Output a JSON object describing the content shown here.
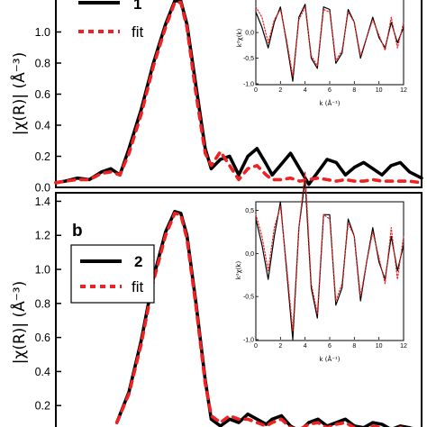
{
  "chart_data": [
    {
      "type": "line",
      "panel_label": "",
      "ylabel": "|χ(R)| (Å⁻³)",
      "ylim": [
        0,
        1.2
      ],
      "yticks": [
        "0.0",
        "0.2",
        "0.4",
        "0.6",
        "0.8",
        "1.0"
      ],
      "xlim": [
        0,
        6
      ],
      "legend": [
        "1",
        "fit"
      ],
      "legend_placement": "top-left",
      "series": [
        {
          "name": "1",
          "color": "#000000",
          "style": "solid",
          "x": [
            0,
            0.15,
            0.35,
            0.55,
            0.75,
            0.9,
            1.05,
            1.2,
            1.4,
            1.6,
            1.8,
            1.95,
            2.05,
            2.15,
            2.3,
            2.45,
            2.55,
            2.7,
            2.85,
            3.0,
            3.15,
            3.3,
            3.45,
            3.55,
            3.7,
            3.85,
            4.0,
            4.15,
            4.3,
            4.45,
            4.6,
            4.75,
            4.9,
            5.05,
            5.2,
            5.35,
            5.5,
            5.65,
            5.8,
            6.0
          ],
          "y": [
            0.03,
            0.04,
            0.06,
            0.05,
            0.1,
            0.12,
            0.08,
            0.25,
            0.5,
            0.8,
            1.05,
            1.2,
            1.2,
            1.05,
            0.65,
            0.25,
            0.12,
            0.18,
            0.2,
            0.08,
            0.2,
            0.25,
            0.15,
            0.08,
            0.15,
            0.22,
            0.12,
            0.02,
            0.1,
            0.18,
            0.16,
            0.08,
            0.13,
            0.16,
            0.12,
            0.08,
            0.14,
            0.16,
            0.1,
            0.06
          ]
        },
        {
          "name": "fit",
          "color": "#ee2222",
          "style": "dashed",
          "x": [
            0,
            0.15,
            0.35,
            0.55,
            0.75,
            0.9,
            1.05,
            1.2,
            1.4,
            1.6,
            1.8,
            1.95,
            2.05,
            2.15,
            2.3,
            2.45,
            2.55,
            2.7,
            2.85,
            3.0,
            3.15,
            3.3,
            3.45,
            3.55,
            3.7,
            3.85,
            4.0,
            4.15,
            4.3,
            4.45,
            4.6,
            4.75,
            4.9,
            5.05,
            5.2,
            5.35,
            5.5,
            5.65,
            5.8,
            6.0
          ],
          "y": [
            0.03,
            0.04,
            0.05,
            0.05,
            0.09,
            0.1,
            0.08,
            0.22,
            0.47,
            0.78,
            1.03,
            1.19,
            1.19,
            1.03,
            0.6,
            0.22,
            0.14,
            0.23,
            0.14,
            0.05,
            0.12,
            0.14,
            0.08,
            0.05,
            0.05,
            0.06,
            0.04,
            0.05,
            0.06,
            0.05,
            0.04,
            0.05,
            0.04,
            0.04,
            0.05,
            0.04,
            0.04,
            0.04,
            0.04,
            0.03
          ]
        }
      ],
      "inset": {
        "ylabel": "k²χ(k)",
        "xlabel": "k (Å⁻¹)",
        "xlim": [
          0,
          12
        ],
        "ylim": [
          -1.0,
          0.6
        ],
        "xticks": [
          "0",
          "2",
          "4",
          "6",
          "8",
          "10",
          "12"
        ],
        "yticks": [
          "-1,0",
          "-0,5",
          "0,0"
        ],
        "series": [
          {
            "name": "data",
            "color": "#000000",
            "style": "solid",
            "x": [
              0,
              0.5,
              1.0,
              1.5,
              2.0,
              2.5,
              3.0,
              3.5,
              4.0,
              4.5,
              5.0,
              5.5,
              6.0,
              6.5,
              7.0,
              7.5,
              8.0,
              8.5,
              9.0,
              9.5,
              10.0,
              10.5,
              11.0,
              11.5,
              12.0
            ],
            "x_unused": [],
            "y": [
              0.4,
              0.1,
              -0.3,
              0.2,
              0.5,
              -0.2,
              -0.95,
              0.3,
              0.55,
              -0.5,
              -0.7,
              0.5,
              0.45,
              -0.6,
              -0.4,
              0.45,
              0.2,
              -0.5,
              -0.1,
              0.3,
              -0.1,
              -0.3,
              0.2,
              -0.2,
              0.1
            ]
          },
          {
            "name": "fit",
            "color": "#ee2222",
            "style": "dotted",
            "x": [
              0,
              0.5,
              1.0,
              1.5,
              2.0,
              2.5,
              3.0,
              3.5,
              4.0,
              4.5,
              5.0,
              5.5,
              6.0,
              6.5,
              7.0,
              7.5,
              8.0,
              8.5,
              9.0,
              9.5,
              10.0,
              10.5,
              11.0,
              11.5,
              12.0
            ],
            "y": [
              0.5,
              0.3,
              -0.2,
              0.25,
              0.45,
              -0.15,
              -0.85,
              0.25,
              0.5,
              -0.45,
              -0.65,
              0.45,
              0.4,
              -0.55,
              -0.35,
              0.4,
              0.2,
              -0.45,
              -0.1,
              0.25,
              -0.05,
              -0.35,
              0.3,
              -0.3,
              0.2
            ]
          }
        ]
      }
    },
    {
      "type": "line",
      "panel_label": "b",
      "ylabel": "|χ(R)| (Å⁻³)",
      "ylim": [
        0,
        1.45
      ],
      "yticks": [
        "0.2",
        "0.4",
        "0.6",
        "0.8",
        "1.0",
        "1.2",
        "1.4"
      ],
      "xlim": [
        0,
        6
      ],
      "legend": [
        "2",
        "fit"
      ],
      "legend_placement": "middle-left",
      "series": [
        {
          "name": "2",
          "color": "#000000",
          "style": "solid",
          "x": [
            1.0,
            1.2,
            1.4,
            1.6,
            1.8,
            1.95,
            2.05,
            2.15,
            2.3,
            2.45,
            2.55,
            2.7,
            2.85,
            3.0,
            3.15,
            3.3,
            3.45,
            3.55,
            3.7,
            3.85,
            4.0,
            4.15,
            4.3,
            4.45,
            4.6,
            4.75,
            4.9,
            5.05,
            5.2,
            5.35,
            5.5,
            5.65,
            5.8,
            6.0
          ],
          "y": [
            0.1,
            0.28,
            0.58,
            0.95,
            1.22,
            1.34,
            1.33,
            1.2,
            0.8,
            0.35,
            0.12,
            0.08,
            0.12,
            0.1,
            0.15,
            0.12,
            0.09,
            0.12,
            0.14,
            0.08,
            0.05,
            0.1,
            0.12,
            0.08,
            0.1,
            0.12,
            0.08,
            0.07,
            0.1,
            0.09,
            0.06,
            0.08,
            0.07,
            0.05
          ]
        },
        {
          "name": "fit",
          "color": "#ee2222",
          "style": "dashed",
          "x": [
            1.0,
            1.2,
            1.4,
            1.6,
            1.8,
            1.95,
            2.05,
            2.15,
            2.3,
            2.45,
            2.55,
            2.7,
            2.85,
            3.0,
            3.15,
            3.3,
            3.45,
            3.55,
            3.7,
            3.85,
            4.0,
            4.15,
            4.3,
            4.45,
            4.6,
            4.75,
            4.9,
            5.05,
            5.2,
            5.35,
            5.5,
            5.65,
            5.8,
            6.0
          ],
          "y": [
            0.1,
            0.27,
            0.56,
            0.93,
            1.2,
            1.33,
            1.32,
            1.18,
            0.78,
            0.33,
            0.14,
            0.1,
            0.14,
            0.12,
            0.12,
            0.1,
            0.08,
            0.1,
            0.12,
            0.07,
            0.06,
            0.09,
            0.1,
            0.07,
            0.09,
            0.1,
            0.07,
            0.06,
            0.08,
            0.07,
            0.05,
            0.07,
            0.06,
            0.05
          ]
        }
      ],
      "inset": {
        "ylabel": "k²χ(k)",
        "xlabel": "k (Å⁻¹)",
        "xlim": [
          0,
          12
        ],
        "ylim": [
          -1.0,
          0.6
        ],
        "xticks": [
          "0",
          "2",
          "4",
          "6",
          "8",
          "10",
          "12"
        ],
        "yticks": [
          "-1,0",
          "-0,5",
          "0,0",
          "0,5"
        ],
        "series": [
          {
            "name": "data",
            "color": "#000000",
            "style": "solid",
            "x": [
              0,
              0.5,
              1.0,
              1.5,
              2.0,
              2.5,
              3.0,
              3.5,
              4.0,
              4.5,
              5.0,
              5.5,
              6.0,
              6.5,
              7.0,
              7.5,
              8.0,
              8.5,
              9.0,
              9.5,
              10.0,
              10.5,
              11.0,
              11.5,
              12.0
            ],
            "y": [
              0.4,
              0.1,
              -0.3,
              0.2,
              0.6,
              -0.2,
              -1.0,
              0.3,
              0.85,
              -0.4,
              -0.75,
              0.45,
              0.45,
              -0.6,
              -0.4,
              0.4,
              0.2,
              -0.55,
              -0.1,
              0.3,
              -0.1,
              -0.3,
              0.2,
              -0.2,
              0.1
            ]
          },
          {
            "name": "fit",
            "color": "#ee2222",
            "style": "dotted",
            "x": [
              0,
              0.5,
              1.0,
              1.5,
              2.0,
              2.5,
              3.0,
              3.5,
              4.0,
              4.5,
              5.0,
              5.5,
              6.0,
              6.5,
              7.0,
              7.5,
              8.0,
              8.5,
              9.0,
              9.5,
              10.0,
              10.5,
              11.0,
              11.5,
              12.0
            ],
            "y": [
              0.45,
              0.2,
              -0.2,
              0.3,
              0.55,
              -0.15,
              -0.9,
              0.3,
              0.95,
              -0.35,
              -0.7,
              0.45,
              0.4,
              -0.55,
              -0.35,
              0.35,
              0.2,
              -0.5,
              -0.1,
              0.25,
              -0.05,
              -0.35,
              0.3,
              -0.3,
              0.2
            ]
          }
        ]
      }
    }
  ]
}
